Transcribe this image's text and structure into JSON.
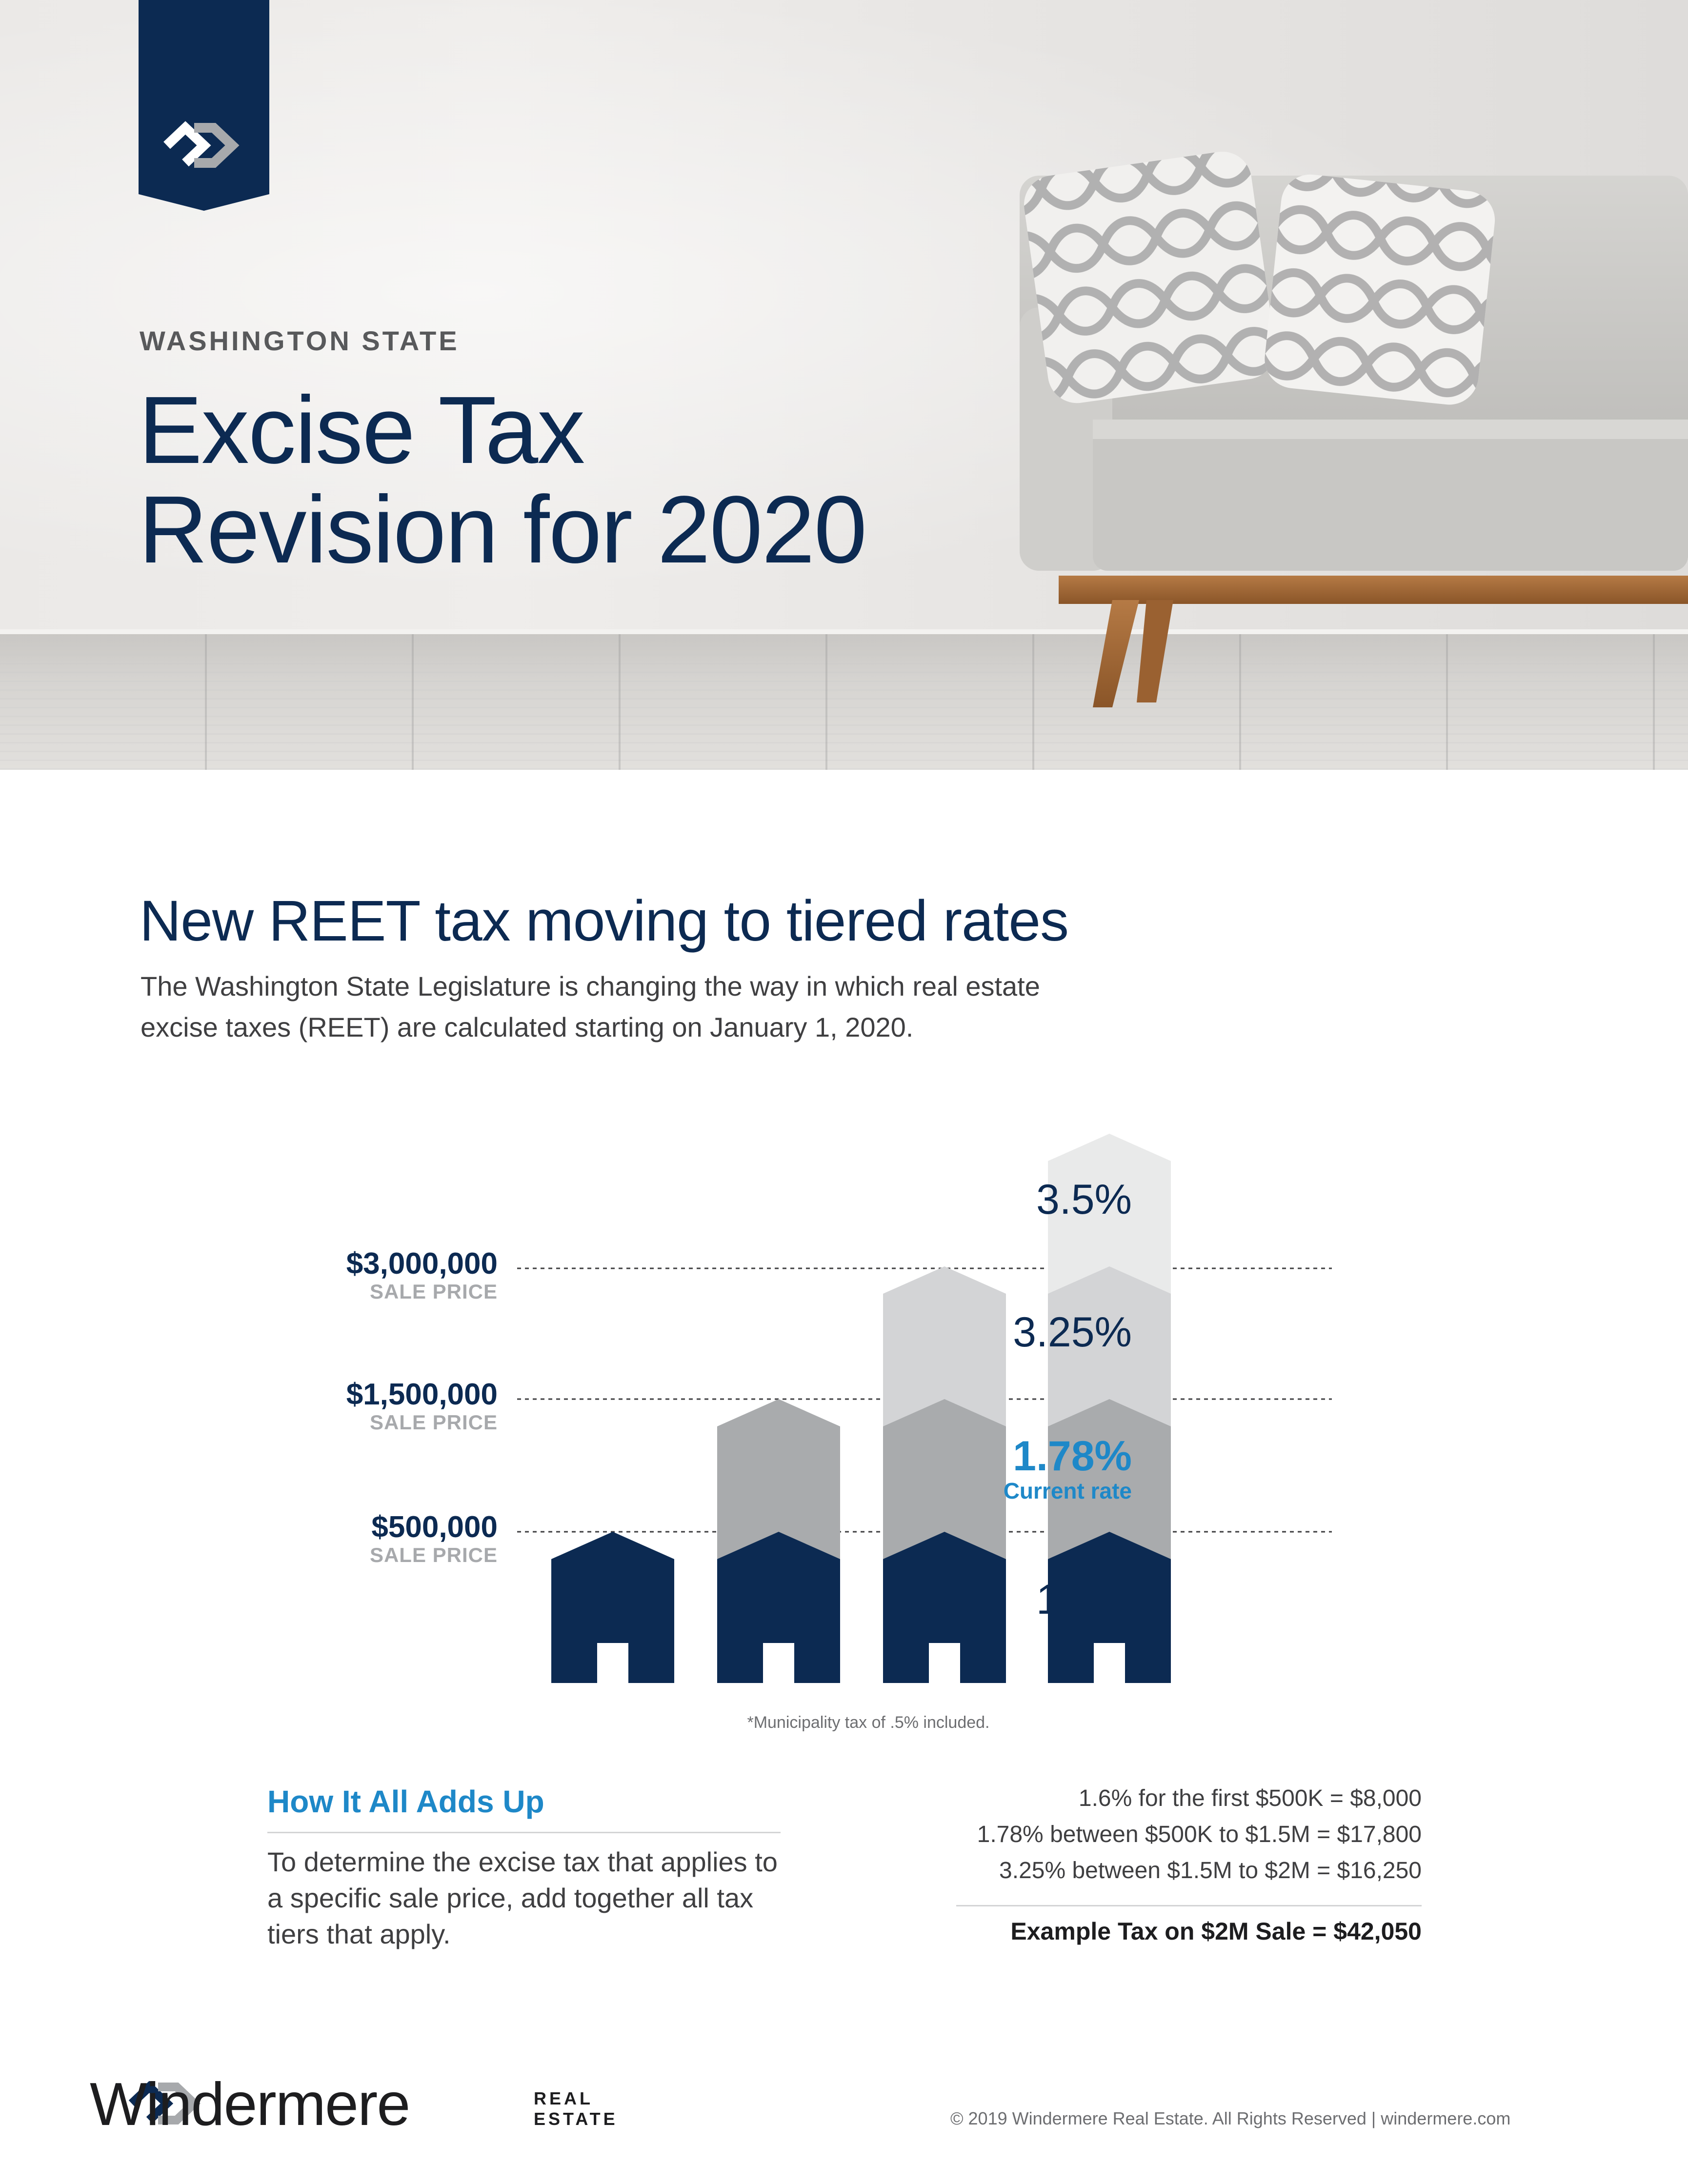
{
  "hero": {
    "kicker": "WASHINGTON STATE",
    "title_line1": "Excise Tax",
    "title_line2": "Revision for 2020",
    "logo_icon": "windermere-w-icon"
  },
  "section": {
    "title": "New REET tax moving to tiered rates",
    "intro": "The Washington State Legislature is changing the way in which real estate excise taxes (REET) are calculated starting on January 1, 2020."
  },
  "chart_data": {
    "type": "bar",
    "title": "",
    "thresholds": [
      {
        "amount": "$3,000,000",
        "label": "SALE PRICE",
        "value": 3000000
      },
      {
        "amount": "$1,500,000",
        "label": "SALE PRICE",
        "value": 1500000
      },
      {
        "amount": "$500,000",
        "label": "SALE PRICE",
        "value": 500000
      }
    ],
    "tiers": [
      {
        "rate": "3.5%",
        "from": 3000000,
        "color": "#e9eaea"
      },
      {
        "rate": "3.25%",
        "from": 1500000,
        "to": 3000000,
        "color": "#d3d4d6"
      },
      {
        "rate": "1.78%",
        "from": 500000,
        "to": 1500000,
        "color": "#a9abad",
        "current": true,
        "note": "Current rate"
      },
      {
        "rate": "1.6%",
        "from": 0,
        "to": 500000,
        "color": "#0c2a52"
      }
    ],
    "houses": [
      {
        "tiers": 1
      },
      {
        "tiers": 2
      },
      {
        "tiers": 3
      },
      {
        "tiers": 4
      }
    ],
    "colors": {
      "navy": "#0c2a52",
      "accent": "#1e88c8",
      "gray_dark": "#a9abad",
      "gray_mid": "#d3d4d6",
      "gray_light": "#e9eaea"
    }
  },
  "footnote": "*Municipality tax of .5% included.",
  "adds_up": {
    "title": "How It All Adds Up",
    "body": "To determine the excise tax that applies to a specific sale price, add together all tax tiers that apply."
  },
  "calculation": {
    "lines": [
      "1.6% for the first $500K = $8,000",
      "1.78% between $500K to $1.5M = $17,800",
      "3.25% between $1.5M to $2M = $16,250"
    ],
    "total": "Example Tax on $2M Sale = $42,050"
  },
  "footer": {
    "brand": "Windermere",
    "brand_sub_line1": "REAL",
    "brand_sub_line2": "ESTATE",
    "copyright": "© 2019 Windermere Real Estate. All Rights Reserved | windermere.com"
  }
}
